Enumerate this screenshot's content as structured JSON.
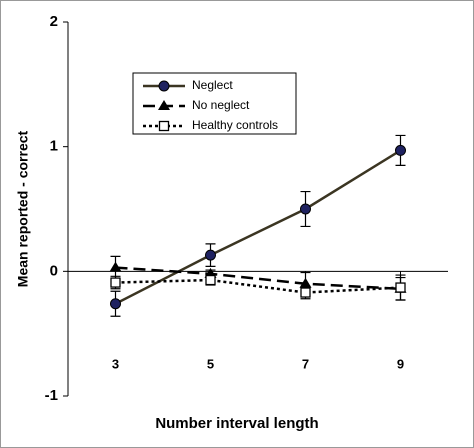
{
  "chart_data": {
    "type": "line",
    "x_label": "Number interval length",
    "y_label": "Mean reported  - correct",
    "x": [
      3,
      5,
      7,
      9
    ],
    "xlim": [
      2,
      10
    ],
    "xticks": [
      3,
      5,
      7,
      9
    ],
    "ylim": [
      -1,
      2
    ],
    "yticks": [
      -1,
      0,
      1,
      2
    ],
    "grid": false,
    "series": [
      {
        "name": "Neglect",
        "color": "#3b3522",
        "marker_color": "#1f2260",
        "line_style": "solid",
        "marker": "circle",
        "values": [
          -0.26,
          0.13,
          0.5,
          0.97
        ],
        "errors": [
          0.1,
          0.09,
          0.14,
          0.12
        ]
      },
      {
        "name": "No neglect",
        "color": "#000000",
        "line_style": "dashed",
        "marker": "triangle",
        "values": [
          0.03,
          -0.02,
          -0.1,
          -0.14
        ],
        "errors": [
          0.09,
          0.03,
          0.09,
          0.09
        ]
      },
      {
        "name": "Healthy controls",
        "color": "#000000",
        "line_style": "dotted",
        "marker": "square",
        "values": [
          -0.09,
          -0.07,
          -0.17,
          -0.13
        ],
        "errors": [
          0.05,
          0.04,
          0.05,
          0.1
        ]
      }
    ]
  }
}
